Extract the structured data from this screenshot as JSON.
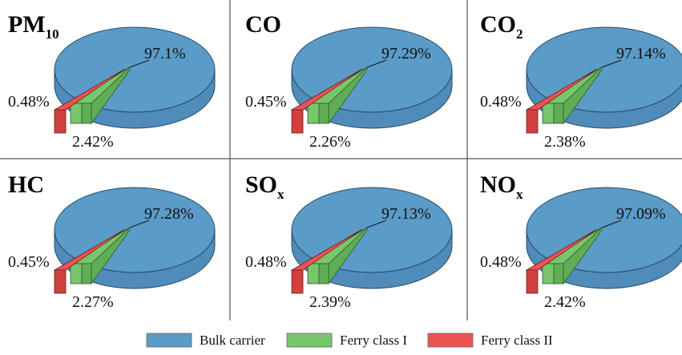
{
  "colors": {
    "bulk": "#5b9bc8",
    "bulk_side": "#4f8cb9",
    "ferry1": "#78c66c",
    "ferry1_side": "#5fae55",
    "ferry2": "#ee5353",
    "ferry2_side": "#d23f3f"
  },
  "chart_data": [
    {
      "type": "pie",
      "title": "PM",
      "title_sub": "10",
      "series": [
        {
          "name": "Bulk carrier",
          "value": 97.1,
          "label": "97.1%"
        },
        {
          "name": "Ferry class I",
          "value": 2.42,
          "label": "2.42%"
        },
        {
          "name": "Ferry class II",
          "value": 0.48,
          "label": "0.48%"
        }
      ]
    },
    {
      "type": "pie",
      "title": "CO",
      "title_sub": "",
      "series": [
        {
          "name": "Bulk carrier",
          "value": 97.29,
          "label": "97.29%"
        },
        {
          "name": "Ferry class I",
          "value": 2.26,
          "label": "2.26%"
        },
        {
          "name": "Ferry class II",
          "value": 0.45,
          "label": "0.45%"
        }
      ]
    },
    {
      "type": "pie",
      "title": "CO",
      "title_sub": "2",
      "series": [
        {
          "name": "Bulk carrier",
          "value": 97.14,
          "label": "97.14%"
        },
        {
          "name": "Ferry class I",
          "value": 2.38,
          "label": "2.38%"
        },
        {
          "name": "Ferry class II",
          "value": 0.48,
          "label": "0.48%"
        }
      ]
    },
    {
      "type": "pie",
      "title": "HC",
      "title_sub": "",
      "series": [
        {
          "name": "Bulk carrier",
          "value": 97.28,
          "label": "97.28%"
        },
        {
          "name": "Ferry class I",
          "value": 2.27,
          "label": "2.27%"
        },
        {
          "name": "Ferry class II",
          "value": 0.45,
          "label": "0.45%"
        }
      ]
    },
    {
      "type": "pie",
      "title": "SO",
      "title_sub": "x",
      "series": [
        {
          "name": "Bulk carrier",
          "value": 97.13,
          "label": "97.13%"
        },
        {
          "name": "Ferry class I",
          "value": 2.39,
          "label": "2.39%"
        },
        {
          "name": "Ferry class II",
          "value": 0.48,
          "label": "0.48%"
        }
      ]
    },
    {
      "type": "pie",
      "title": "NO",
      "title_sub": "x",
      "series": [
        {
          "name": "Bulk carrier",
          "value": 97.09,
          "label": "97.09%"
        },
        {
          "name": "Ferry class I",
          "value": 2.42,
          "label": "2.42%"
        },
        {
          "name": "Ferry class II",
          "value": 0.48,
          "label": "0.48%"
        }
      ]
    }
  ],
  "legend": {
    "position": "bottom",
    "items": [
      {
        "label": "Bulk carrier",
        "color_key": "bulk"
      },
      {
        "label": "Ferry class I",
        "color_key": "ferry1"
      },
      {
        "label": "Ferry class II",
        "color_key": "ferry2"
      }
    ]
  }
}
